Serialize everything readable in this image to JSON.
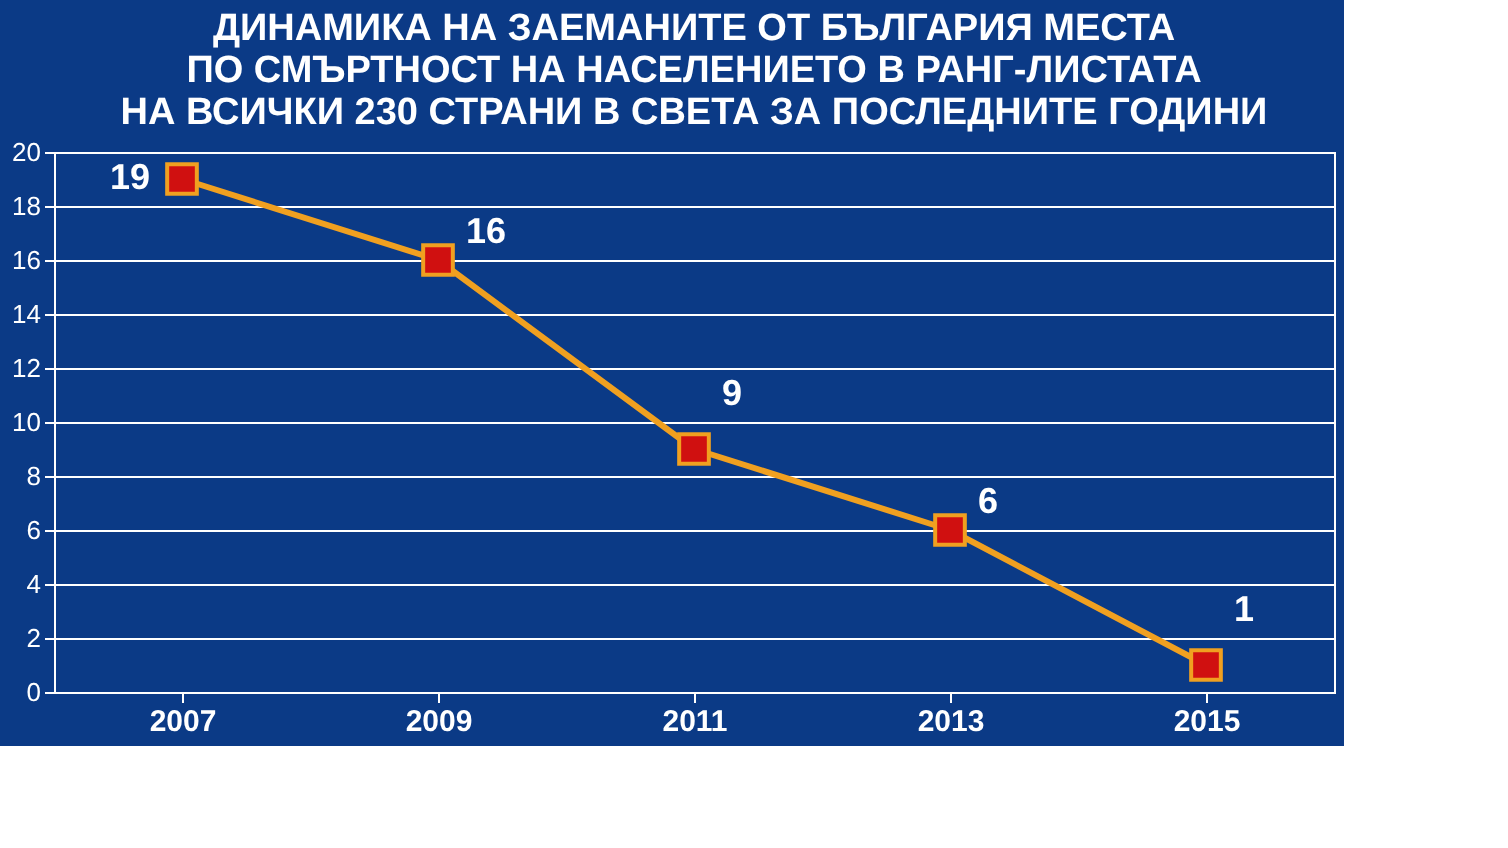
{
  "chart_data": {
    "type": "line",
    "title": [
      "ДИНАМИКА НА ЗАЕМАНИТЕ ОТ БЪЛГАРИЯ МЕСТА",
      "ПО СМЪРТНОСТ НА НАСЕЛЕНИЕТО В РАНГ-ЛИСТАТА",
      "НА ВСИЧКИ 230 СТРАНИ В СВЕТА ЗА ПОСЛЕДНИТЕ ГОДИНИ"
    ],
    "categories": [
      "2007",
      "2009",
      "2011",
      "2013",
      "2015"
    ],
    "series": [
      {
        "color": "#f0a020",
        "values": [
          19,
          16,
          9,
          6,
          1
        ]
      }
    ],
    "ylim": [
      0,
      20
    ],
    "yticks": [
      0,
      2,
      4,
      6,
      8,
      10,
      12,
      14,
      16,
      18,
      20
    ],
    "grid": "y",
    "marker": "square",
    "line_style": "solid",
    "data_labels": true
  }
}
